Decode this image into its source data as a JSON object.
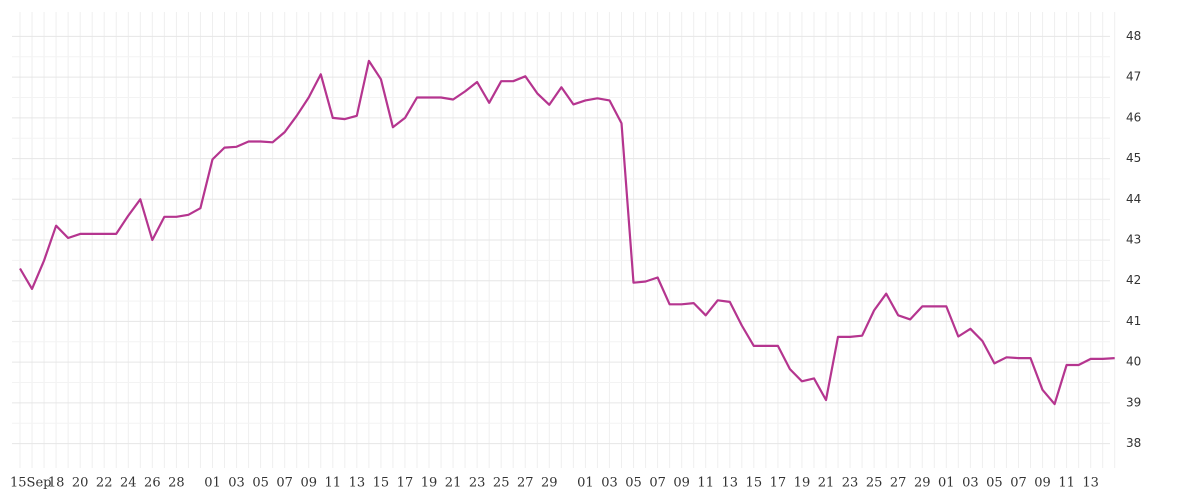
{
  "chart_data": {
    "type": "line",
    "categories": [
      "15Sep",
      null,
      null,
      "18",
      null,
      "20",
      null,
      "22",
      null,
      "24",
      null,
      "26",
      null,
      "28",
      null,
      null,
      "01",
      null,
      "03",
      null,
      "05",
      null,
      "07",
      null,
      "09",
      null,
      "11",
      null,
      "13",
      null,
      "15",
      null,
      "17",
      null,
      "19",
      null,
      "21",
      null,
      "23",
      null,
      "25",
      null,
      "27",
      null,
      "29",
      null,
      null,
      "01",
      null,
      "03",
      null,
      "05",
      null,
      "07",
      null,
      "09",
      null,
      "11",
      null,
      "13",
      null,
      "15",
      null,
      "17",
      null,
      "19",
      null,
      "21",
      null,
      "23",
      null,
      "25",
      null,
      "27",
      null,
      "29",
      null,
      "01",
      null,
      "03",
      null,
      "05",
      null,
      "07",
      null,
      "09",
      null,
      "11",
      null,
      "13",
      null,
      null
    ],
    "values": [
      42.3,
      41.8,
      42.5,
      43.35,
      43.05,
      43.15,
      43.15,
      43.15,
      43.15,
      43.6,
      44.0,
      43.0,
      43.57,
      43.57,
      43.62,
      43.78,
      44.98,
      45.27,
      45.29,
      45.42,
      45.42,
      45.4,
      45.65,
      46.05,
      46.5,
      47.07,
      46.0,
      45.97,
      46.05,
      47.4,
      46.95,
      45.77,
      46.0,
      46.5,
      46.5,
      46.5,
      46.45,
      46.65,
      46.88,
      46.37,
      46.9,
      46.9,
      47.02,
      46.6,
      46.32,
      46.75,
      46.33,
      46.43,
      46.48,
      46.43,
      45.87,
      41.95,
      41.98,
      42.08,
      41.42,
      41.42,
      41.45,
      41.15,
      41.52,
      41.48,
      40.9,
      40.4,
      40.4,
      40.4,
      39.83,
      39.53,
      39.6,
      39.07,
      40.62,
      40.62,
      40.65,
      41.27,
      41.68,
      41.15,
      41.05,
      41.37,
      41.37,
      41.37,
      40.63,
      40.82,
      40.52,
      39.97,
      40.12,
      40.1,
      40.1,
      39.32,
      38.97,
      39.93,
      39.93,
      40.08,
      40.08,
      40.1
    ],
    "color": "#b5358f",
    "ylim": [
      37.4,
      48.6
    ],
    "yticks": [
      38,
      39,
      40,
      41,
      42,
      43,
      44,
      45,
      46,
      47,
      48
    ],
    "grid": true
  }
}
